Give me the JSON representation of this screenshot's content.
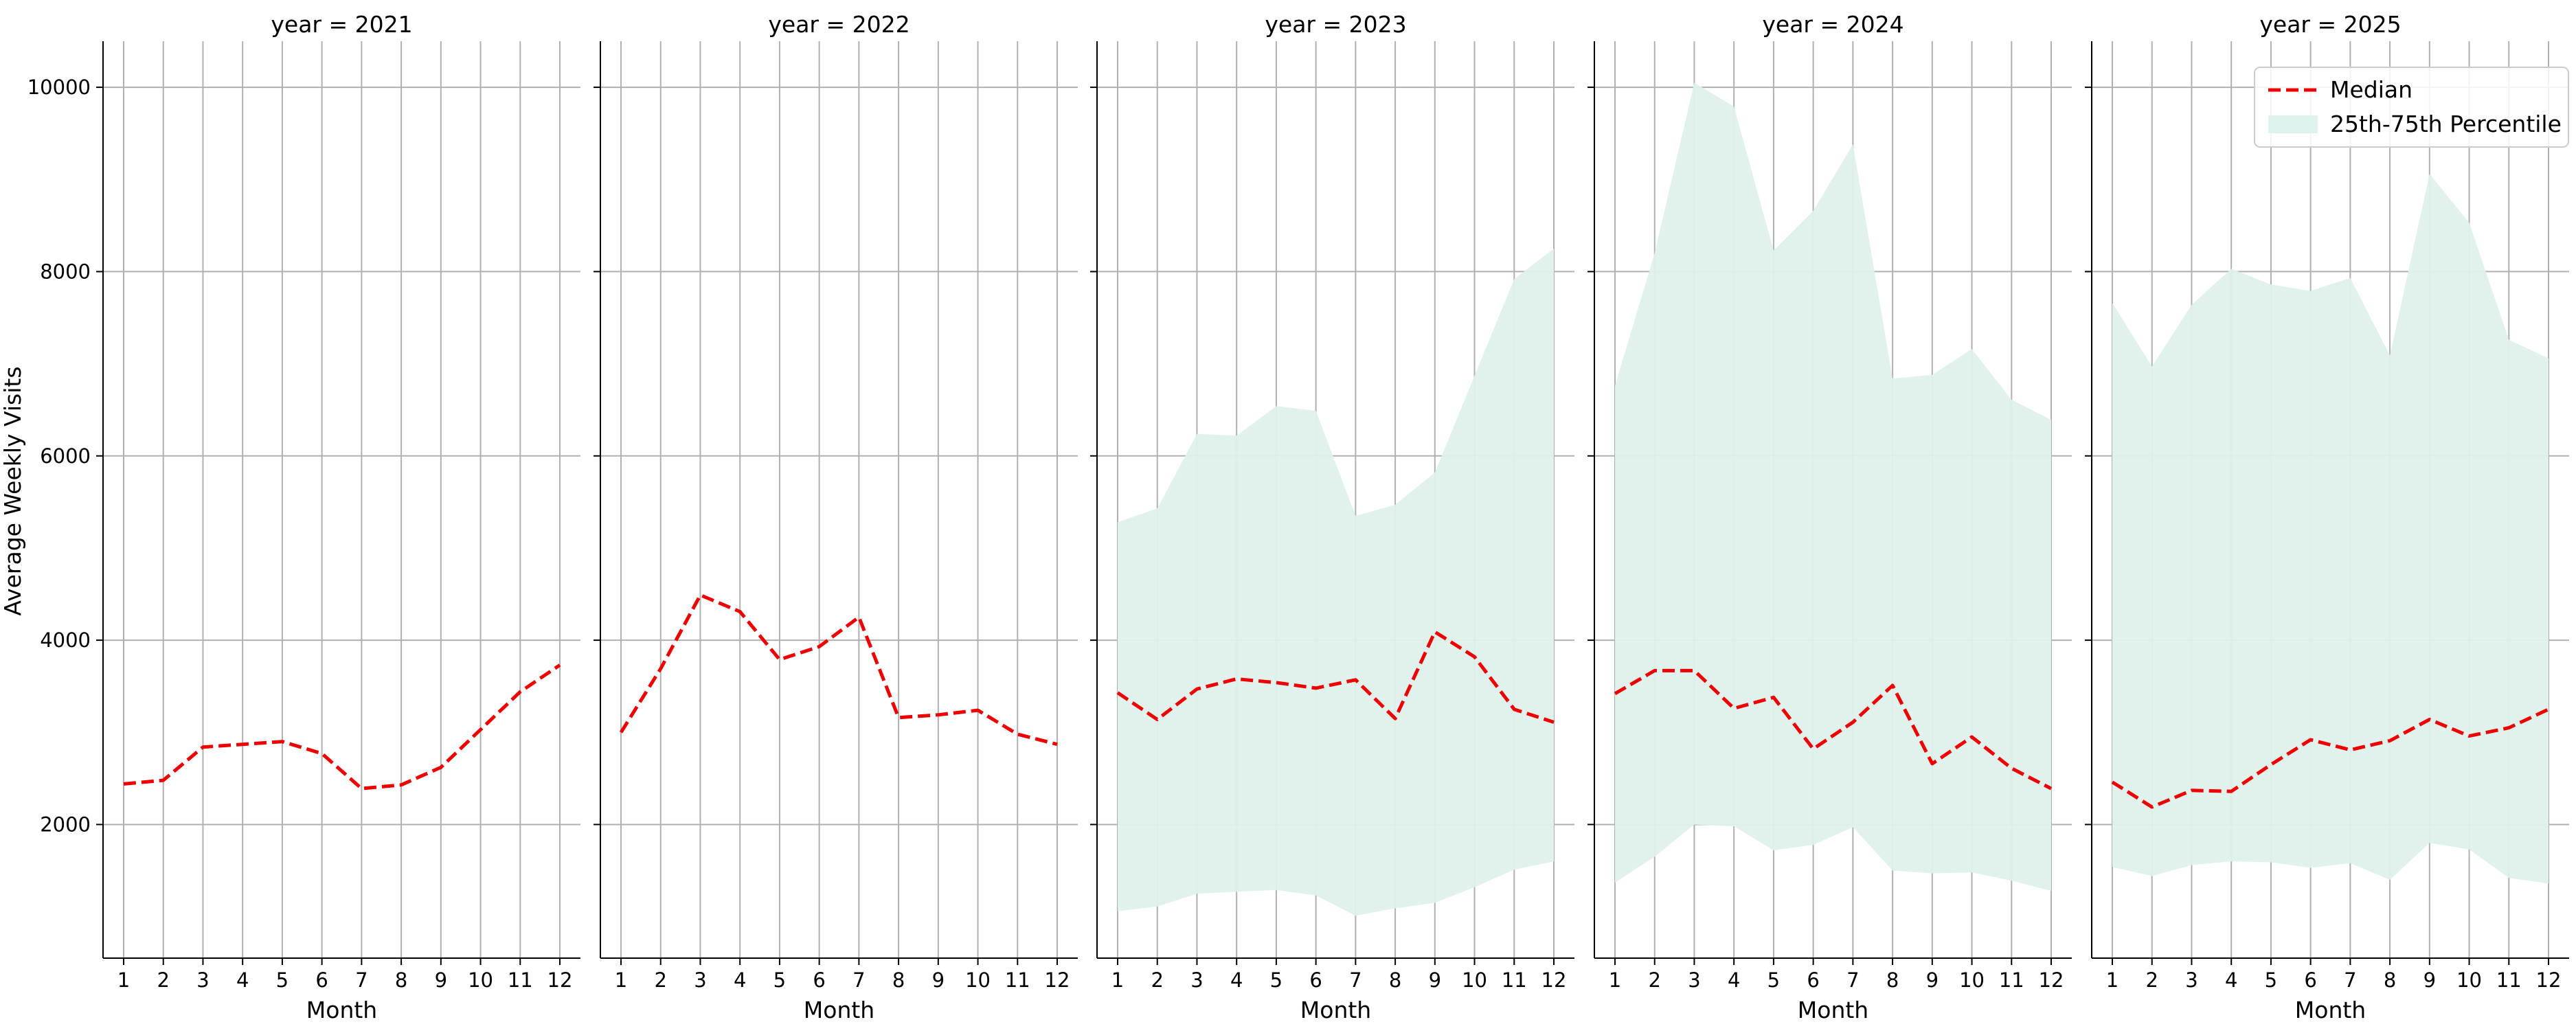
{
  "chart_data": {
    "type": "line",
    "ylabel": "Average Weekly Visits",
    "xlabel": "Month",
    "x": [
      1,
      2,
      3,
      4,
      5,
      6,
      7,
      8,
      9,
      10,
      11,
      12
    ],
    "ylim": [
      550,
      10500
    ],
    "yticks": [
      2000,
      4000,
      6000,
      8000,
      10000
    ],
    "grid": true,
    "legend": {
      "placement": "top-right",
      "entries": [
        {
          "label": "Median",
          "color": "#ee0000",
          "style": "dashed-line"
        },
        {
          "label": "25th-75th Percentile",
          "color": "#dff1ec",
          "style": "band"
        }
      ]
    },
    "colors": {
      "median": "#ee0000",
      "band": "#dff1ec",
      "grid": "#b0b0b0"
    },
    "panels": [
      {
        "title": "year = 2021",
        "median": [
          2440,
          2480,
          2840,
          2870,
          2900,
          2770,
          2390,
          2430,
          2620,
          3030,
          3440,
          3730
        ],
        "p25": null,
        "p75": null
      },
      {
        "title": "year = 2022",
        "median": [
          3000,
          3690,
          4490,
          4310,
          3790,
          3930,
          4250,
          3160,
          3190,
          3240,
          2980,
          2870
        ],
        "p25": null,
        "p75": null
      },
      {
        "title": "year = 2023",
        "median": [
          3430,
          3140,
          3470,
          3580,
          3540,
          3480,
          3570,
          3150,
          4090,
          3820,
          3250,
          3110
        ],
        "p25": [
          1060,
          1110,
          1250,
          1270,
          1290,
          1230,
          1010,
          1090,
          1150,
          1320,
          1510,
          1600
        ],
        "p75": [
          5280,
          5430,
          6240,
          6220,
          6540,
          6490,
          5350,
          5470,
          5820,
          6870,
          7920,
          8250
        ]
      },
      {
        "title": "year = 2024",
        "median": [
          3420,
          3670,
          3670,
          3260,
          3380,
          2820,
          3110,
          3510,
          2660,
          2950,
          2610,
          2390
        ],
        "p25": [
          1370,
          1650,
          2000,
          1980,
          1720,
          1780,
          1970,
          1500,
          1470,
          1480,
          1390,
          1280
        ],
        "p75": [
          6760,
          8200,
          10050,
          9790,
          8230,
          8660,
          9380,
          6840,
          6880,
          7160,
          6610,
          6390
        ]
      },
      {
        "title": "year = 2025",
        "median": [
          2460,
          2190,
          2370,
          2360,
          2650,
          2920,
          2810,
          2910,
          3140,
          2960,
          3050,
          3250
        ],
        "p25": [
          1540,
          1440,
          1560,
          1600,
          1590,
          1530,
          1580,
          1400,
          1800,
          1730,
          1420,
          1360
        ],
        "p75": [
          7660,
          6970,
          7640,
          8030,
          7860,
          7790,
          7930,
          7090,
          9060,
          8530,
          7260,
          7060
        ]
      }
    ]
  }
}
